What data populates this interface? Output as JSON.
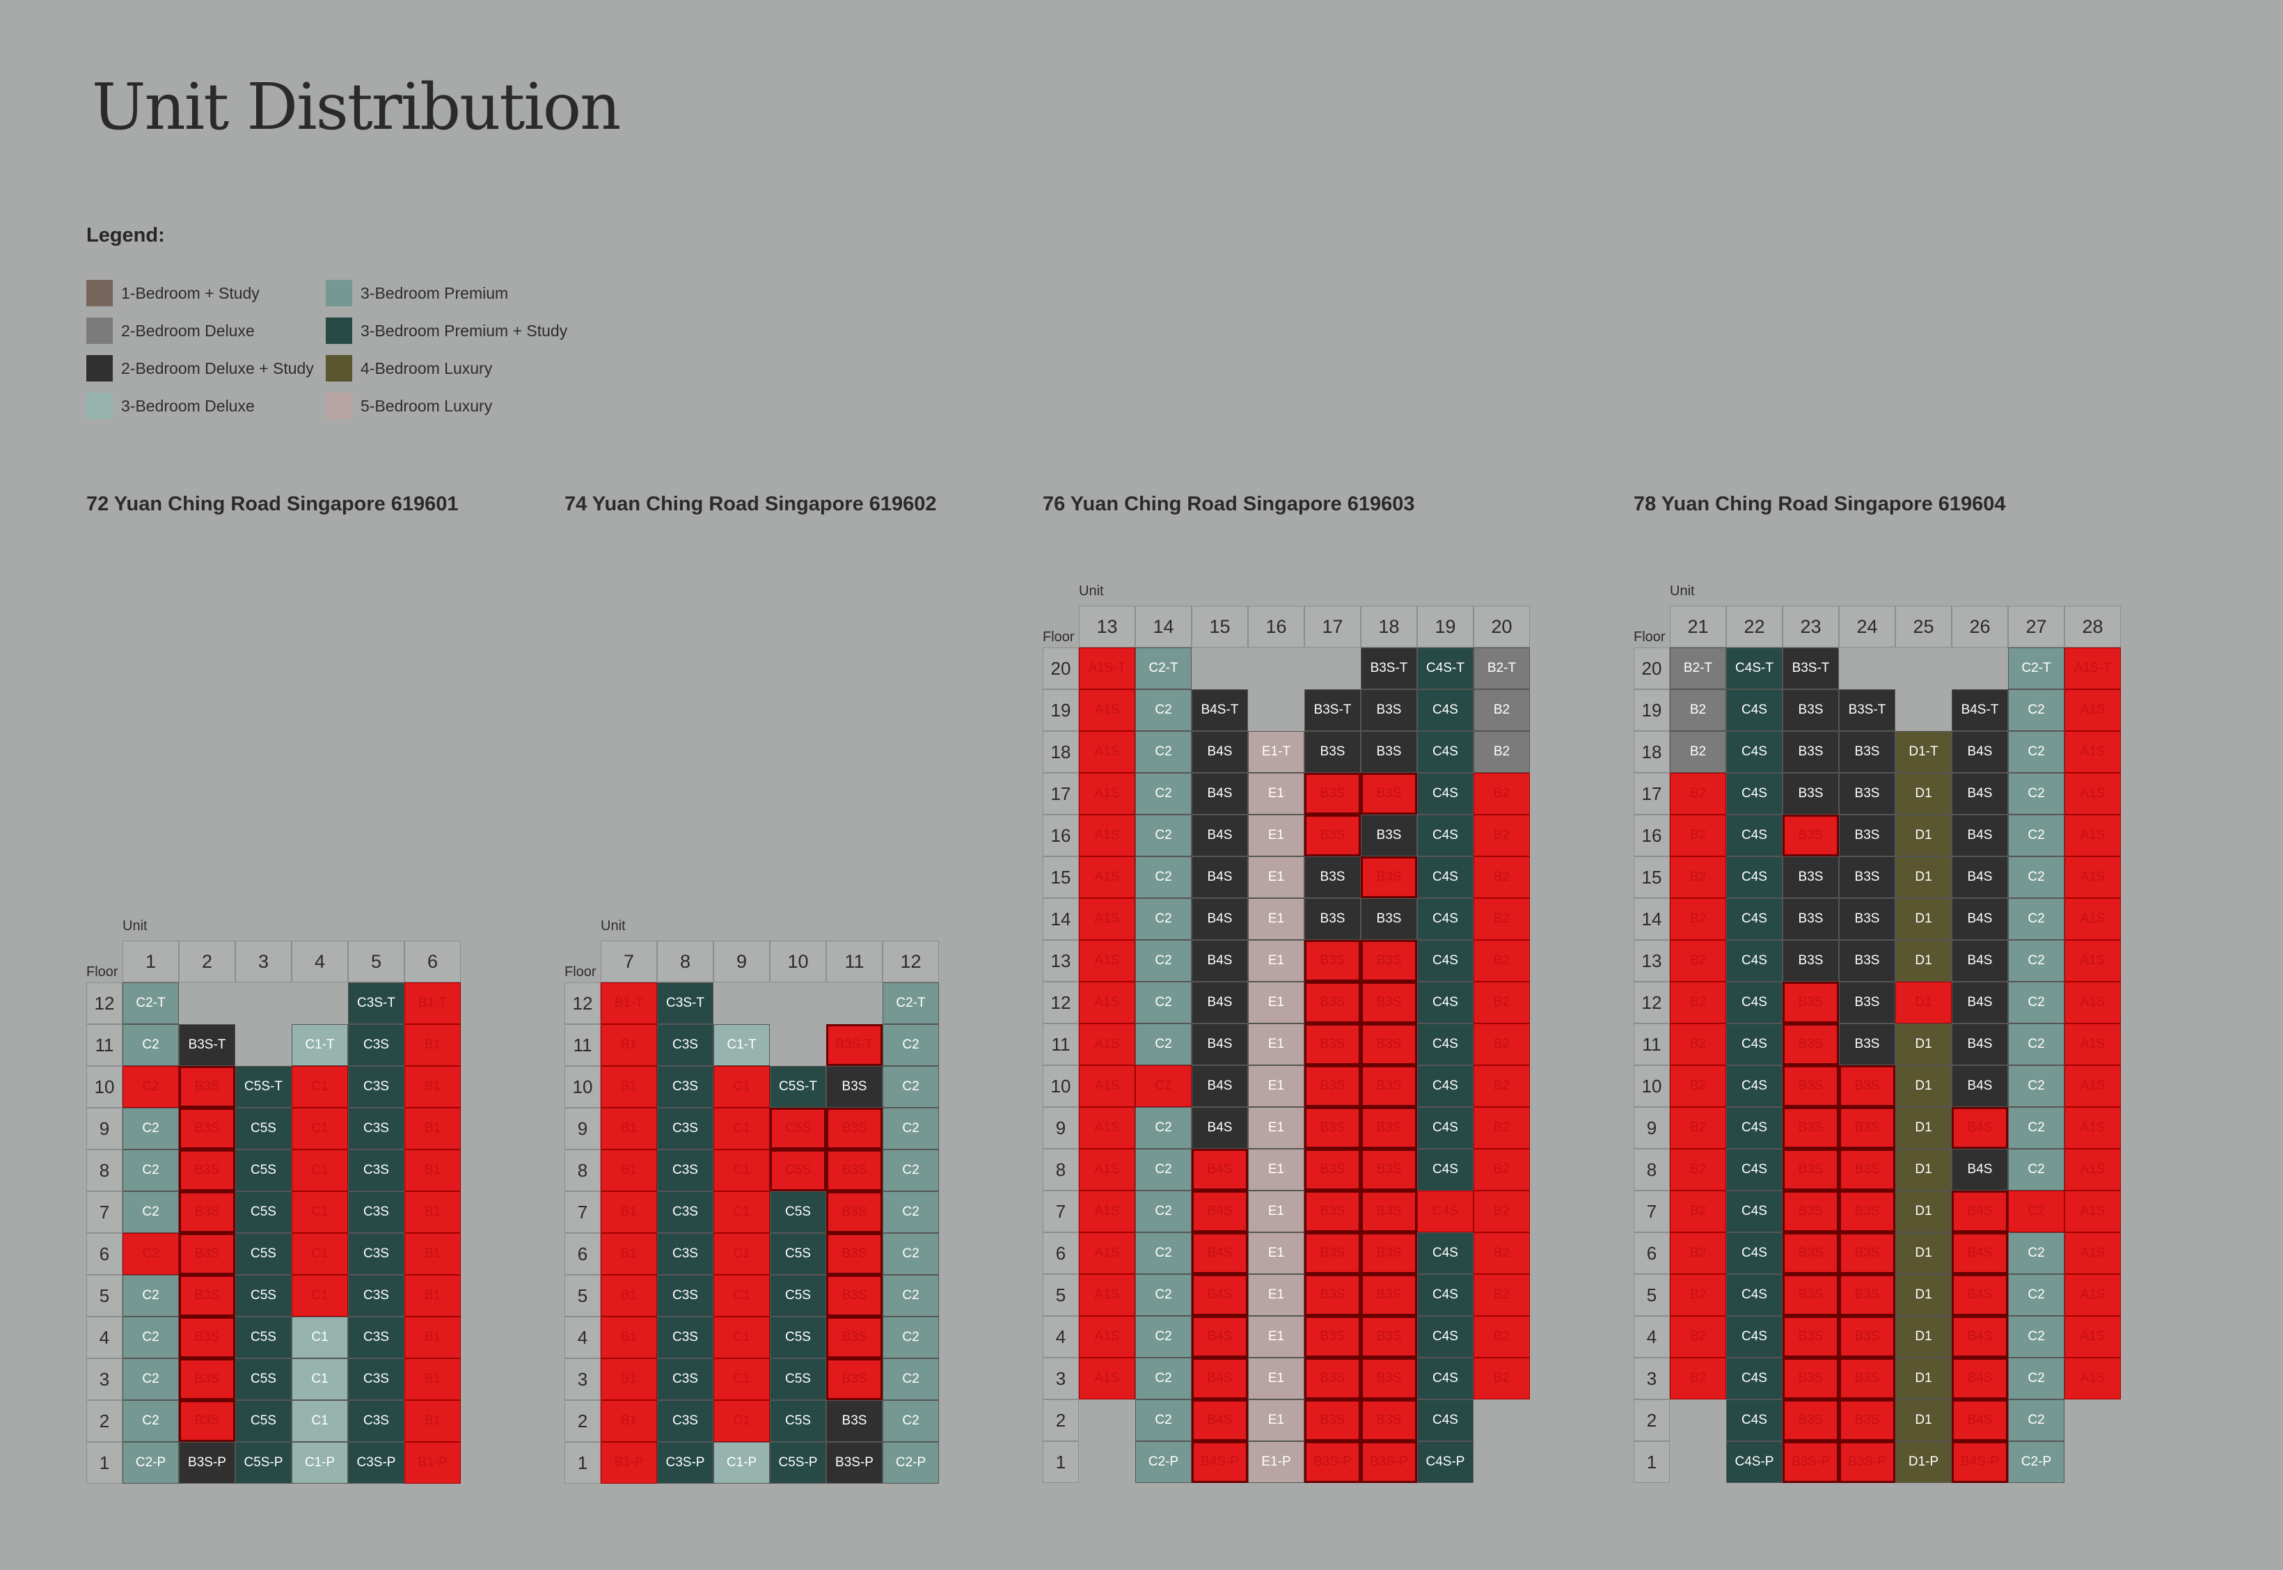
{
  "title": "Unit Distribution",
  "legend": {
    "title": "Legend:",
    "items": [
      {
        "label": "1-Bedroom + Study",
        "color": "#75655a"
      },
      {
        "label": "2-Bedroom Deluxe",
        "color": "#7b7b7b"
      },
      {
        "label": "2-Bedroom Deluxe + Study",
        "color": "#303030"
      },
      {
        "label": "3-Bedroom Deluxe",
        "color": "#96b3ad"
      },
      {
        "label": "3-Bedroom Premium",
        "color": "#769893"
      },
      {
        "label": "3-Bedroom Premium + Study",
        "color": "#274a46"
      },
      {
        "label": "4-Bedroom Luxury",
        "color": "#5a5630"
      },
      {
        "label": "5-Bedroom Luxury",
        "color": "#b8a4a2"
      }
    ]
  },
  "labels": {
    "unit": "Unit",
    "floor": "Floor"
  },
  "type_colors": {
    "A1S": "#75655a",
    "B1": "#7b7b7b",
    "B2": "#7b7b7b",
    "B3S": "#303030",
    "B4S": "#303030",
    "C1": "#96b3ad",
    "C2": "#769893",
    "C3S": "#274a46",
    "C4S": "#274a46",
    "C5S": "#274a46",
    "D1": "#5a5630",
    "E1": "#b8a4a2",
    "sold": "#e21a1c"
  },
  "blocks": [
    {
      "address": "72 Yuan Ching Road Singapore 619601",
      "units": [
        "1",
        "2",
        "3",
        "4",
        "5",
        "6"
      ],
      "floors": [
        "12",
        "11",
        "10",
        "9",
        "8",
        "7",
        "6",
        "5",
        "4",
        "3",
        "2",
        "1"
      ],
      "rows": [
        [
          "C2-T",
          "",
          "",
          "",
          "C3S-T",
          "B1-T"
        ],
        [
          "C2",
          "B3S-T",
          "",
          "C1-T",
          "C3S",
          "B1"
        ],
        [
          "C2",
          "B3S",
          "C5S-T",
          "C1",
          "C3S",
          "B1"
        ],
        [
          "C2",
          "B3S",
          "C5S",
          "C1",
          "C3S",
          "B1"
        ],
        [
          "C2",
          "B3S",
          "C5S",
          "C1",
          "C3S",
          "B1"
        ],
        [
          "C2",
          "B3S",
          "C5S",
          "C1",
          "C3S",
          "B1"
        ],
        [
          "C2",
          "B3S",
          "C5S",
          "C1",
          "C3S",
          "B1"
        ],
        [
          "C2",
          "B3S",
          "C5S",
          "C1",
          "C3S",
          "B1"
        ],
        [
          "C2",
          "B3S",
          "C5S",
          "C1",
          "C3S",
          "B1"
        ],
        [
          "C2",
          "B3S",
          "C5S",
          "C1",
          "C3S",
          "B1"
        ],
        [
          "C2",
          "B3S",
          "C5S",
          "C1",
          "C3S",
          "B1"
        ],
        [
          "C2-P",
          "B3S-P",
          "C5S-P",
          "C1-P",
          "C3S-P",
          "B1-P"
        ]
      ],
      "sold": [
        [
          0,
          0,
          0,
          0,
          0,
          1
        ],
        [
          0,
          0,
          0,
          0,
          0,
          1
        ],
        [
          1,
          1,
          0,
          1,
          0,
          1
        ],
        [
          0,
          1,
          0,
          1,
          0,
          1
        ],
        [
          0,
          1,
          0,
          1,
          0,
          1
        ],
        [
          0,
          1,
          0,
          1,
          0,
          1
        ],
        [
          1,
          1,
          0,
          1,
          0,
          1
        ],
        [
          0,
          1,
          0,
          1,
          0,
          1
        ],
        [
          0,
          1,
          0,
          0,
          0,
          1
        ],
        [
          0,
          1,
          0,
          0,
          0,
          1
        ],
        [
          0,
          1,
          0,
          0,
          0,
          1
        ],
        [
          0,
          0,
          0,
          0,
          0,
          1
        ]
      ]
    },
    {
      "address": "74 Yuan Ching Road Singapore 619602",
      "units": [
        "7",
        "8",
        "9",
        "10",
        "11",
        "12"
      ],
      "floors": [
        "12",
        "11",
        "10",
        "9",
        "8",
        "7",
        "6",
        "5",
        "4",
        "3",
        "2",
        "1"
      ],
      "rows": [
        [
          "B1-T",
          "C3S-T",
          "",
          "",
          "",
          "C2-T"
        ],
        [
          "B1",
          "C3S",
          "C1-T",
          "",
          "B3S-T",
          "C2"
        ],
        [
          "B1",
          "C3S",
          "C1",
          "C5S-T",
          "B3S",
          "C2"
        ],
        [
          "B1",
          "C3S",
          "C1",
          "C5S",
          "B3S",
          "C2"
        ],
        [
          "B1",
          "C3S",
          "C1",
          "C5S",
          "B3S",
          "C2"
        ],
        [
          "B1",
          "C3S",
          "C1",
          "C5S",
          "B3S",
          "C2"
        ],
        [
          "B1",
          "C3S",
          "C1",
          "C5S",
          "B3S",
          "C2"
        ],
        [
          "B1",
          "C3S",
          "C1",
          "C5S",
          "B3S",
          "C2"
        ],
        [
          "B1",
          "C3S",
          "C1",
          "C5S",
          "B3S",
          "C2"
        ],
        [
          "B1",
          "C3S",
          "C1",
          "C5S",
          "B3S",
          "C2"
        ],
        [
          "B1",
          "C3S",
          "C1",
          "C5S",
          "B3S",
          "C2"
        ],
        [
          "B1-P",
          "C3S-P",
          "C1-P",
          "C5S-P",
          "B3S-P",
          "C2-P"
        ]
      ],
      "sold": [
        [
          1,
          0,
          0,
          0,
          0,
          0
        ],
        [
          1,
          0,
          0,
          0,
          1,
          0
        ],
        [
          1,
          0,
          1,
          0,
          0,
          0
        ],
        [
          1,
          0,
          1,
          1,
          1,
          0
        ],
        [
          1,
          0,
          1,
          1,
          1,
          0
        ],
        [
          1,
          0,
          1,
          0,
          1,
          0
        ],
        [
          1,
          0,
          1,
          0,
          1,
          0
        ],
        [
          1,
          0,
          1,
          0,
          1,
          0
        ],
        [
          1,
          0,
          1,
          0,
          1,
          0
        ],
        [
          1,
          0,
          1,
          0,
          1,
          0
        ],
        [
          1,
          0,
          1,
          0,
          0,
          0
        ],
        [
          1,
          0,
          0,
          0,
          0,
          0
        ]
      ]
    },
    {
      "address": "76 Yuan Ching Road Singapore 619603",
      "units": [
        "13",
        "14",
        "15",
        "16",
        "17",
        "18",
        "19",
        "20"
      ],
      "floors": [
        "20",
        "19",
        "18",
        "17",
        "16",
        "15",
        "14",
        "13",
        "12",
        "11",
        "10",
        "9",
        "8",
        "7",
        "6",
        "5",
        "4",
        "3",
        "2",
        "1"
      ],
      "rows": [
        [
          "A1S-T",
          "C2-T",
          "",
          "",
          "",
          "B3S-T",
          "C4S-T",
          "B2-T"
        ],
        [
          "A1S",
          "C2",
          "B4S-T",
          "",
          "B3S-T",
          "B3S",
          "C4S",
          "B2"
        ],
        [
          "A1S",
          "C2",
          "B4S",
          "E1-T",
          "B3S",
          "B3S",
          "C4S",
          "B2"
        ],
        [
          "A1S",
          "C2",
          "B4S",
          "E1",
          "B3S",
          "B3S",
          "C4S",
          "B2"
        ],
        [
          "A1S",
          "C2",
          "B4S",
          "E1",
          "B3S",
          "B3S",
          "C4S",
          "B2"
        ],
        [
          "A1S",
          "C2",
          "B4S",
          "E1",
          "B3S",
          "B3S",
          "C4S",
          "B2"
        ],
        [
          "A1S",
          "C2",
          "B4S",
          "E1",
          "B3S",
          "B3S",
          "C4S",
          "B2"
        ],
        [
          "A1S",
          "C2",
          "B4S",
          "E1",
          "B3S",
          "B3S",
          "C4S",
          "B2"
        ],
        [
          "A1S",
          "C2",
          "B4S",
          "E1",
          "B3S",
          "B3S",
          "C4S",
          "B2"
        ],
        [
          "A1S",
          "C2",
          "B4S",
          "E1",
          "B3S",
          "B3S",
          "C4S",
          "B2"
        ],
        [
          "A1S",
          "C2",
          "B4S",
          "E1",
          "B3S",
          "B3S",
          "C4S",
          "B2"
        ],
        [
          "A1S",
          "C2",
          "B4S",
          "E1",
          "B3S",
          "B3S",
          "C4S",
          "B2"
        ],
        [
          "A1S",
          "C2",
          "B4S",
          "E1",
          "B3S",
          "B3S",
          "C4S",
          "B2"
        ],
        [
          "A1S",
          "C2",
          "B4S",
          "E1",
          "B3S",
          "B3S",
          "C4S",
          "B2"
        ],
        [
          "A1S",
          "C2",
          "B4S",
          "E1",
          "B3S",
          "B3S",
          "C4S",
          "B2"
        ],
        [
          "A1S",
          "C2",
          "B4S",
          "E1",
          "B3S",
          "B3S",
          "C4S",
          "B2"
        ],
        [
          "A1S",
          "C2",
          "B4S",
          "E1",
          "B3S",
          "B3S",
          "C4S",
          "B2"
        ],
        [
          "A1S",
          "C2",
          "B4S",
          "E1",
          "B3S",
          "B3S",
          "C4S",
          "B2"
        ],
        [
          "",
          "C2",
          "B4S",
          "E1",
          "B3S",
          "B3S",
          "C4S",
          ""
        ],
        [
          "",
          "C2-P",
          "B4S-P",
          "E1-P",
          "B3S-P",
          "B3S-P",
          "C4S-P",
          ""
        ]
      ],
      "sold": [
        [
          1,
          0,
          0,
          0,
          0,
          0,
          0,
          0
        ],
        [
          1,
          0,
          0,
          0,
          0,
          0,
          0,
          0
        ],
        [
          1,
          0,
          0,
          0,
          0,
          0,
          0,
          0
        ],
        [
          1,
          0,
          0,
          0,
          1,
          1,
          0,
          1
        ],
        [
          1,
          0,
          0,
          0,
          1,
          0,
          0,
          1
        ],
        [
          1,
          0,
          0,
          0,
          0,
          1,
          0,
          1
        ],
        [
          1,
          0,
          0,
          0,
          0,
          0,
          0,
          1
        ],
        [
          1,
          0,
          0,
          0,
          1,
          1,
          0,
          1
        ],
        [
          1,
          0,
          0,
          0,
          1,
          1,
          0,
          1
        ],
        [
          1,
          0,
          0,
          0,
          1,
          1,
          0,
          1
        ],
        [
          1,
          1,
          0,
          0,
          1,
          1,
          0,
          1
        ],
        [
          1,
          0,
          0,
          0,
          1,
          1,
          0,
          1
        ],
        [
          1,
          0,
          1,
          0,
          1,
          1,
          0,
          1
        ],
        [
          1,
          0,
          1,
          0,
          1,
          1,
          1,
          1
        ],
        [
          1,
          0,
          1,
          0,
          1,
          1,
          0,
          1
        ],
        [
          1,
          0,
          1,
          0,
          1,
          1,
          0,
          1
        ],
        [
          1,
          0,
          1,
          0,
          1,
          1,
          0,
          1
        ],
        [
          1,
          0,
          1,
          0,
          1,
          1,
          0,
          1
        ],
        [
          0,
          0,
          1,
          0,
          1,
          1,
          0,
          0
        ],
        [
          0,
          0,
          1,
          0,
          1,
          1,
          0,
          0
        ]
      ]
    },
    {
      "address": "78 Yuan Ching Road Singapore 619604",
      "units": [
        "21",
        "22",
        "23",
        "24",
        "25",
        "26",
        "27",
        "28"
      ],
      "floors": [
        "20",
        "19",
        "18",
        "17",
        "16",
        "15",
        "14",
        "13",
        "12",
        "11",
        "10",
        "9",
        "8",
        "7",
        "6",
        "5",
        "4",
        "3",
        "2",
        "1"
      ],
      "rows": [
        [
          "B2-T",
          "C4S-T",
          "B3S-T",
          "",
          "",
          "",
          "C2-T",
          "A1S-T"
        ],
        [
          "B2",
          "C4S",
          "B3S",
          "B3S-T",
          "",
          "B4S-T",
          "C2",
          "A1S"
        ],
        [
          "B2",
          "C4S",
          "B3S",
          "B3S",
          "D1-T",
          "B4S",
          "C2",
          "A1S"
        ],
        [
          "B2",
          "C4S",
          "B3S",
          "B3S",
          "D1",
          "B4S",
          "C2",
          "A1S"
        ],
        [
          "B2",
          "C4S",
          "B3S",
          "B3S",
          "D1",
          "B4S",
          "C2",
          "A1S"
        ],
        [
          "B2",
          "C4S",
          "B3S",
          "B3S",
          "D1",
          "B4S",
          "C2",
          "A1S"
        ],
        [
          "B2",
          "C4S",
          "B3S",
          "B3S",
          "D1",
          "B4S",
          "C2",
          "A1S"
        ],
        [
          "B2",
          "C4S",
          "B3S",
          "B3S",
          "D1",
          "B4S",
          "C2",
          "A1S"
        ],
        [
          "B2",
          "C4S",
          "B3S",
          "B3S",
          "D1",
          "B4S",
          "C2",
          "A1S"
        ],
        [
          "B2",
          "C4S",
          "B3S",
          "B3S",
          "D1",
          "B4S",
          "C2",
          "A1S"
        ],
        [
          "B2",
          "C4S",
          "B3S",
          "B3S",
          "D1",
          "B4S",
          "C2",
          "A1S"
        ],
        [
          "B2",
          "C4S",
          "B3S",
          "B3S",
          "D1",
          "B4S",
          "C2",
          "A1S"
        ],
        [
          "B2",
          "C4S",
          "B3S",
          "B3S",
          "D1",
          "B4S",
          "C2",
          "A1S"
        ],
        [
          "B2",
          "C4S",
          "B3S",
          "B3S",
          "D1",
          "B4S",
          "C2",
          "A1S"
        ],
        [
          "B2",
          "C4S",
          "B3S",
          "B3S",
          "D1",
          "B4S",
          "C2",
          "A1S"
        ],
        [
          "B2",
          "C4S",
          "B3S",
          "B3S",
          "D1",
          "B4S",
          "C2",
          "A1S"
        ],
        [
          "B2",
          "C4S",
          "B3S",
          "B3S",
          "D1",
          "B4S",
          "C2",
          "A1S"
        ],
        [
          "B2",
          "C4S",
          "B3S",
          "B3S",
          "D1",
          "B4S",
          "C2",
          "A1S"
        ],
        [
          "",
          "C4S",
          "B3S",
          "B3S",
          "D1",
          "B4S",
          "C2",
          ""
        ],
        [
          "",
          "C4S-P",
          "B3S-P",
          "B3S-P",
          "D1-P",
          "B4S-P",
          "C2-P",
          ""
        ]
      ],
      "sold": [
        [
          0,
          0,
          0,
          0,
          0,
          0,
          0,
          1
        ],
        [
          0,
          0,
          0,
          0,
          0,
          0,
          0,
          1
        ],
        [
          0,
          0,
          0,
          0,
          0,
          0,
          0,
          1
        ],
        [
          1,
          0,
          0,
          0,
          0,
          0,
          0,
          1
        ],
        [
          1,
          0,
          1,
          0,
          0,
          0,
          0,
          1
        ],
        [
          1,
          0,
          0,
          0,
          0,
          0,
          0,
          1
        ],
        [
          1,
          0,
          0,
          0,
          0,
          0,
          0,
          1
        ],
        [
          1,
          0,
          0,
          0,
          0,
          0,
          0,
          1
        ],
        [
          1,
          0,
          1,
          0,
          1,
          0,
          0,
          1
        ],
        [
          1,
          0,
          1,
          0,
          0,
          0,
          0,
          1
        ],
        [
          1,
          0,
          1,
          1,
          0,
          0,
          0,
          1
        ],
        [
          1,
          0,
          1,
          1,
          0,
          1,
          0,
          1
        ],
        [
          1,
          0,
          1,
          1,
          0,
          0,
          0,
          1
        ],
        [
          1,
          0,
          1,
          1,
          0,
          1,
          1,
          1
        ],
        [
          1,
          0,
          1,
          1,
          0,
          1,
          0,
          1
        ],
        [
          1,
          0,
          1,
          1,
          0,
          1,
          0,
          1
        ],
        [
          1,
          0,
          1,
          1,
          0,
          1,
          0,
          1
        ],
        [
          1,
          0,
          1,
          1,
          0,
          1,
          0,
          1
        ],
        [
          0,
          0,
          1,
          1,
          0,
          1,
          0,
          0
        ],
        [
          0,
          0,
          1,
          1,
          0,
          1,
          0,
          0
        ]
      ]
    }
  ]
}
